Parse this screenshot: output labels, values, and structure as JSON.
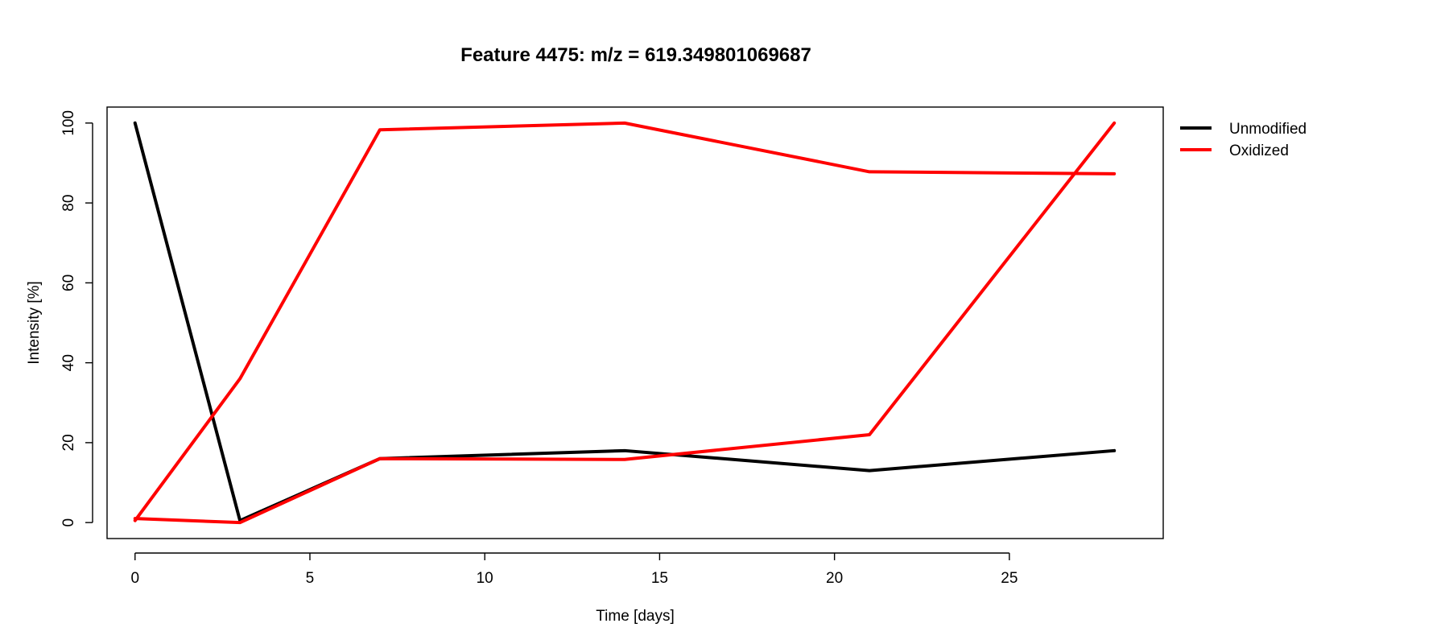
{
  "chart_data": {
    "type": "line",
    "title": "Feature 4475: m/z = 619.349801069687",
    "xlabel": "Time [days]",
    "ylabel": "Intensity [%]",
    "xlim": [
      -0.8,
      29.4
    ],
    "ylim": [
      -4,
      104
    ],
    "x_ticks": [
      0,
      5,
      10,
      15,
      20,
      25
    ],
    "y_ticks": [
      0,
      20,
      40,
      60,
      80,
      100
    ],
    "grid": false,
    "legend_position": "right",
    "legend": [
      {
        "label": "Unmodified",
        "color": "#000000"
      },
      {
        "label": "Oxidized",
        "color": "#ff0000"
      }
    ],
    "series": [
      {
        "name": "Unmodified",
        "color": "#000000",
        "x": [
          0,
          3,
          7,
          14,
          21,
          28
        ],
        "y": [
          100,
          0.5,
          16,
          18,
          13,
          18
        ]
      },
      {
        "name": "Oxidized",
        "color": "#ff0000",
        "x": [
          0,
          3,
          7,
          14,
          21,
          28
        ],
        "y": [
          1,
          0,
          16,
          15.8,
          22,
          100
        ]
      },
      {
        "name": "Oxidized",
        "color": "#ff0000",
        "x": [
          0,
          3,
          7,
          14,
          21,
          28
        ],
        "y": [
          0.5,
          36,
          98.3,
          100,
          87.8,
          87.3
        ]
      }
    ]
  }
}
